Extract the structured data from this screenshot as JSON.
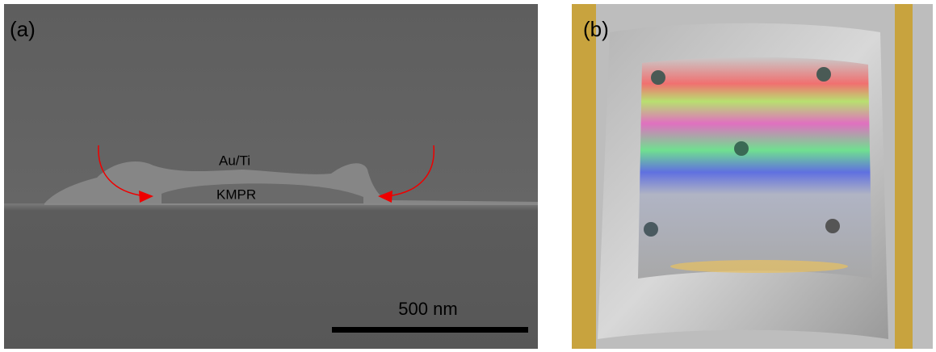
{
  "panel_a": {
    "label": "(a)",
    "annotations": [
      "Au/Ti",
      "KMPR"
    ],
    "scale_bar": "500 nm"
  },
  "panel_b": {
    "label": "(b)"
  }
}
